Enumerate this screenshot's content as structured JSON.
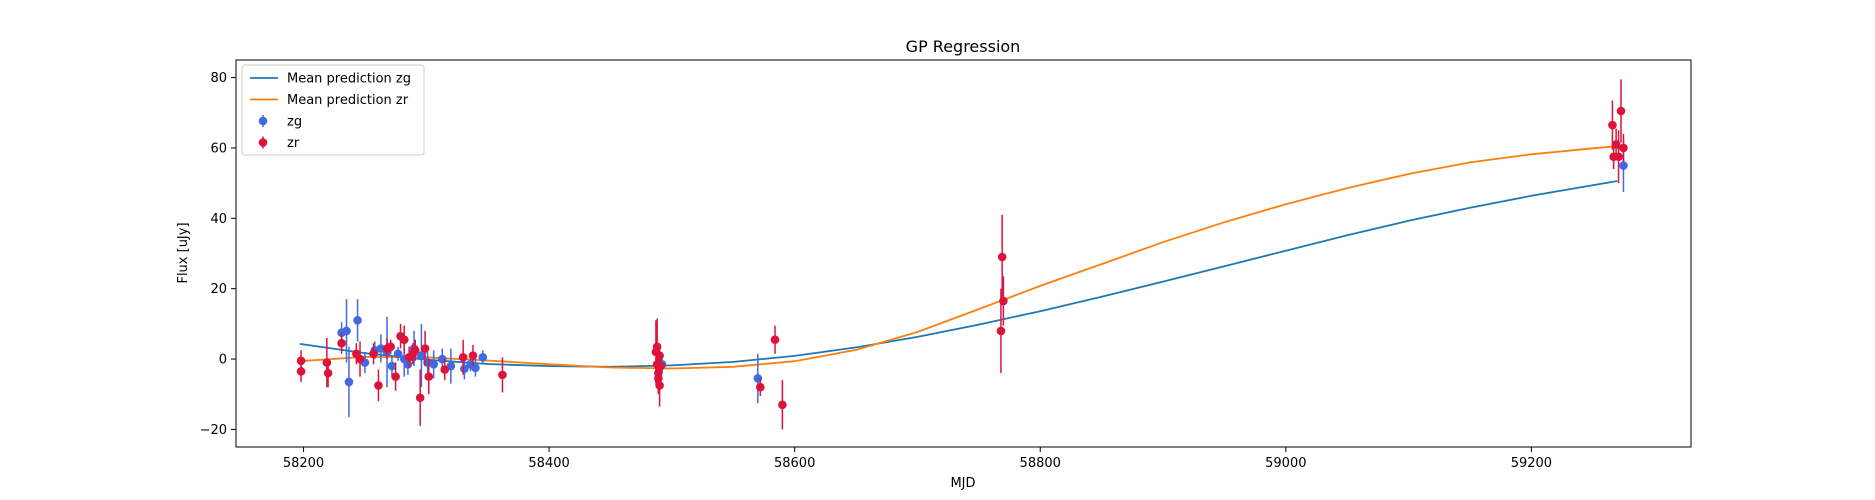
{
  "chart_data": {
    "type": "scatter",
    "title": "GP Regression",
    "xlabel": "MJD",
    "ylabel": "Flux [uJy]",
    "xlim": [
      58145,
      59330
    ],
    "ylim": [
      -25,
      85
    ],
    "xticks": [
      58200,
      58400,
      58600,
      58800,
      59000,
      59200
    ],
    "yticks": [
      -20,
      0,
      20,
      40,
      60,
      80
    ],
    "grid": false,
    "legend_position": "upper-left",
    "series": [
      {
        "name": "Mean prediction zg",
        "kind": "line",
        "color": "#1f77b4",
        "x": [
          58197,
          58250,
          58300,
          58350,
          58400,
          58450,
          58500,
          58550,
          58600,
          58650,
          58700,
          58750,
          58800,
          58850,
          58900,
          58950,
          59000,
          59050,
          59100,
          59150,
          59200,
          59250,
          59270
        ],
        "y": [
          4.3,
          1.7,
          -0.2,
          -1.4,
          -2.0,
          -2.2,
          -1.8,
          -0.8,
          0.9,
          3.3,
          6.3,
          9.8,
          13.6,
          17.7,
          22.0,
          26.4,
          30.8,
          35.2,
          39.3,
          43.0,
          46.4,
          49.4,
          50.6
        ]
      },
      {
        "name": "Mean prediction zr",
        "kind": "line",
        "color": "#ff7f0e",
        "x": [
          58197,
          58250,
          58300,
          58350,
          58400,
          58450,
          58500,
          58550,
          58600,
          58650,
          58700,
          58750,
          58800,
          58850,
          58900,
          58950,
          59000,
          59050,
          59100,
          59150,
          59200,
          59250,
          59270
        ],
        "y": [
          -0.6,
          0.6,
          0.5,
          -0.4,
          -1.5,
          -2.4,
          -2.7,
          -2.2,
          -0.6,
          2.6,
          7.7,
          14.2,
          20.8,
          27.0,
          33.2,
          38.9,
          44.0,
          48.6,
          52.6,
          55.9,
          58.2,
          59.9,
          60.5
        ]
      },
      {
        "name": "zg",
        "kind": "errorbar",
        "color": "#4169e1",
        "x": [
          58231,
          58235,
          58237,
          58244,
          58250,
          58258,
          58263,
          58268,
          58272,
          58277,
          58282,
          58285,
          58290,
          58296,
          58301,
          58306,
          58313,
          58320,
          58331,
          58336,
          58340,
          58346,
          58492,
          58570,
          59275
        ],
        "y": [
          7.5,
          8.0,
          -6.5,
          11.0,
          -1.0,
          2.5,
          3.0,
          2.0,
          -2.0,
          1.5,
          0.0,
          -1.5,
          3.0,
          1.0,
          -1.0,
          -1.5,
          0.0,
          -2.0,
          -2.8,
          -1.5,
          -2.5,
          0.5,
          -1.5,
          -5.5,
          55.0
        ],
        "err": [
          3.0,
          9.0,
          10.0,
          6.0,
          3.0,
          2.5,
          4.0,
          10.0,
          3.0,
          2.0,
          5.0,
          3.0,
          5.0,
          9.0,
          3.0,
          4.0,
          3.0,
          5.0,
          3.0,
          2.0,
          2.5,
          2.0,
          2.5,
          7.0,
          7.5
        ]
      },
      {
        "name": "zr",
        "kind": "errorbar",
        "color": "#dc143c",
        "x": [
          58198,
          58198,
          58219,
          58220,
          58231,
          58243,
          58246,
          58257,
          58261,
          58268,
          58271,
          58275,
          58279,
          58282,
          58286,
          58289,
          58291,
          58295,
          58299,
          58302,
          58315,
          58330,
          58338,
          58362,
          58487,
          58488,
          58488,
          58489,
          58489,
          58490,
          58490,
          58491,
          58572,
          58584,
          58590,
          58768,
          58769,
          58770,
          59266,
          59267,
          59269,
          59271,
          59273,
          59275
        ],
        "y": [
          -0.5,
          -3.5,
          -1.0,
          -4.0,
          4.5,
          1.5,
          0.0,
          1.5,
          -7.5,
          3.0,
          3.5,
          -5.0,
          6.5,
          5.5,
          0.5,
          1.5,
          2.5,
          -11.0,
          3.0,
          -5.0,
          -3.0,
          0.5,
          1.0,
          -4.5,
          2.0,
          3.5,
          -1.5,
          -4.0,
          -5.5,
          -7.5,
          1.0,
          -2.0,
          -8.0,
          5.5,
          -13.0,
          8.0,
          29.0,
          16.5,
          66.5,
          57.5,
          61.0,
          57.5,
          70.5,
          60.0
        ],
        "err": [
          3.0,
          3.0,
          7.0,
          4.0,
          3.0,
          3.0,
          5.0,
          3.0,
          4.5,
          3.0,
          2.0,
          4.0,
          3.5,
          4.0,
          3.0,
          3.0,
          3.0,
          8.0,
          5.0,
          5.0,
          3.0,
          5.0,
          3.0,
          5.0,
          9.0,
          8.0,
          6.0,
          6.0,
          4.0,
          6.0,
          3.0,
          4.0,
          2.5,
          4.0,
          7.0,
          12.0,
          12.0,
          7.0,
          7.0,
          3.5,
          4.5,
          7.5,
          9.0,
          4.0
        ]
      }
    ]
  }
}
